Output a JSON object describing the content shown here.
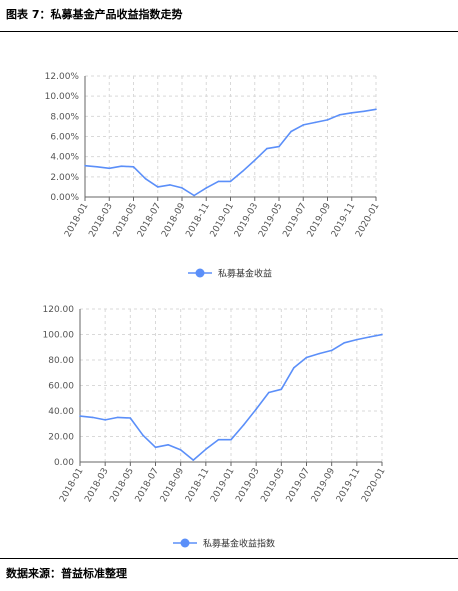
{
  "header": {
    "title": "图表 7：私募基金产品收益指数走势"
  },
  "footer": {
    "source": "数据来源：普益标准整理"
  },
  "colors": {
    "line": "#5b8ff9",
    "grid": "#d9d9d9",
    "axis": "#666666"
  },
  "chart_data": [
    {
      "type": "line",
      "x": [
        "2018-01",
        "2018-02",
        "2018-03",
        "2018-04",
        "2018-05",
        "2018-06",
        "2018-07",
        "2018-08",
        "2018-09",
        "2018-10",
        "2018-11",
        "2018-12",
        "2019-01",
        "2019-02",
        "2019-03",
        "2019-04",
        "2019-05",
        "2019-06",
        "2019-07",
        "2019-08",
        "2019-09",
        "2019-10",
        "2019-11",
        "2019-12",
        "2020-01"
      ],
      "tick_labels": [
        "2018-01",
        "2018-03",
        "2018-05",
        "2018-07",
        "2018-09",
        "2018-11",
        "2019-01",
        "2019-03",
        "2019-05",
        "2019-07",
        "2019-09",
        "2019-11",
        "2020-01"
      ],
      "y_ticks": [
        "0.00%",
        "2.00%",
        "4.00%",
        "6.00%",
        "8.00%",
        "10.00%",
        "12.00%"
      ],
      "ylim": [
        0,
        12
      ],
      "grid": true,
      "legend_position": "bottom-center",
      "series": [
        {
          "name": "私募基金收益",
          "values": [
            3.1,
            3.0,
            2.85,
            3.05,
            3.0,
            1.8,
            1.0,
            1.2,
            0.9,
            0.15,
            0.9,
            1.55,
            1.55,
            2.55,
            3.65,
            4.8,
            5.0,
            6.5,
            7.15,
            7.4,
            7.65,
            8.15,
            8.35,
            8.5,
            8.7
          ]
        }
      ]
    },
    {
      "type": "line",
      "x": [
        "2018-01",
        "2018-02",
        "2018-03",
        "2018-04",
        "2018-05",
        "2018-06",
        "2018-07",
        "2018-08",
        "2018-09",
        "2018-10",
        "2018-11",
        "2018-12",
        "2019-01",
        "2019-02",
        "2019-03",
        "2019-04",
        "2019-05",
        "2019-06",
        "2019-07",
        "2019-08",
        "2019-09",
        "2019-10",
        "2019-11",
        "2019-12",
        "2020-01"
      ],
      "tick_labels": [
        "2018-01",
        "2018-03",
        "2018-05",
        "2018-07",
        "2018-09",
        "2018-11",
        "2019-01",
        "2019-03",
        "2019-05",
        "2019-07",
        "2019-09",
        "2019-11",
        "2020-01"
      ],
      "y_ticks": [
        "0.00",
        "20.00",
        "40.00",
        "60.00",
        "80.00",
        "100.00",
        "120.00"
      ],
      "ylim": [
        0,
        120
      ],
      "grid": true,
      "legend_position": "bottom-center",
      "series": [
        {
          "name": "私募基金收益指数",
          "values": [
            36,
            35,
            33,
            35,
            34.5,
            21,
            11.5,
            13.5,
            9.5,
            1.5,
            10,
            17.5,
            17.5,
            29,
            41.5,
            54.5,
            57,
            74,
            82,
            85,
            87.5,
            93.5,
            96,
            98,
            100
          ]
        }
      ]
    }
  ]
}
